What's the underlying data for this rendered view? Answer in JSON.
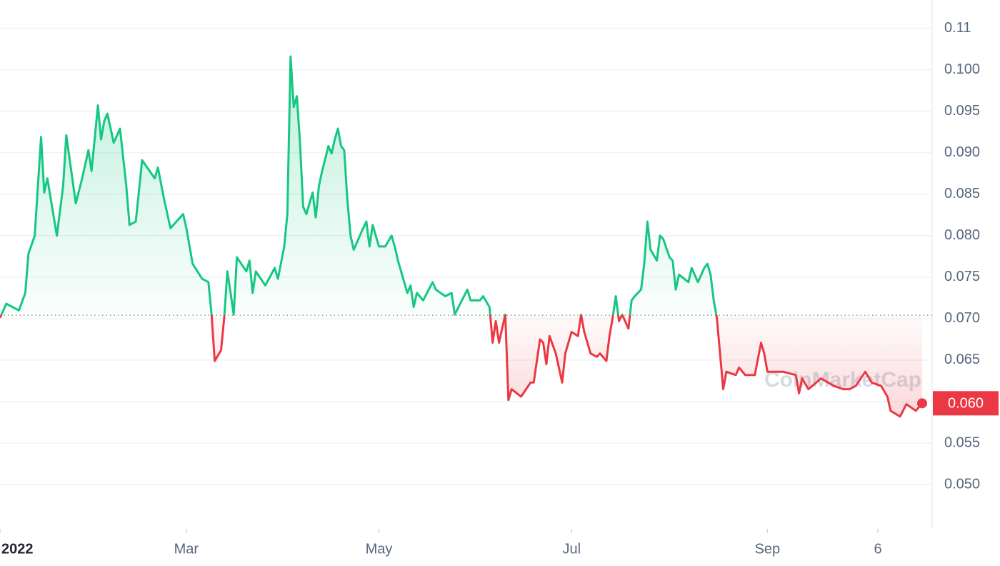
{
  "chart_data": {
    "type": "line",
    "watermark": "CoinMarketCap",
    "x": [
      0,
      2,
      6,
      8,
      9,
      11,
      13,
      14,
      15,
      18,
      20,
      21,
      24,
      26,
      28,
      29,
      31,
      32,
      33,
      34,
      36,
      38,
      40,
      41,
      43,
      45,
      49,
      50,
      52,
      54,
      58,
      59,
      61,
      64,
      66,
      67,
      68,
      70,
      71,
      72,
      73,
      74,
      75,
      78,
      79,
      80,
      81,
      84,
      87,
      88,
      90,
      91,
      92,
      93,
      94,
      95,
      96,
      97,
      99,
      100,
      101,
      102,
      104,
      105,
      106,
      107,
      108,
      109,
      110,
      111,
      112,
      115,
      116,
      117,
      118,
      120,
      122,
      124,
      125,
      126,
      127,
      129,
      130,
      131,
      132,
      134,
      137,
      138,
      141,
      143,
      144,
      148,
      149,
      152,
      153,
      155,
      156,
      157,
      158,
      160,
      161,
      162,
      165,
      168,
      169,
      171,
      172,
      173,
      174,
      176,
      178,
      179,
      181,
      183,
      184,
      185,
      187,
      189,
      190,
      192,
      193,
      194,
      195,
      196,
      197,
      199,
      200,
      201,
      203,
      204,
      205,
      206,
      208,
      209,
      210,
      212,
      213,
      214,
      215,
      218,
      219,
      221,
      223,
      224,
      225,
      226,
      227,
      229,
      230,
      233,
      234,
      236,
      239,
      241,
      242,
      243,
      248,
      252,
      253,
      254,
      256,
      260,
      264,
      267,
      269,
      271,
      274,
      276,
      279,
      281,
      282,
      285,
      287,
      290,
      292
    ],
    "values": [
      0.0701,
      0.0718,
      0.071,
      0.0731,
      0.0778,
      0.08,
      0.0919,
      0.0852,
      0.0869,
      0.08,
      0.086,
      0.0921,
      0.0839,
      0.0869,
      0.0903,
      0.0878,
      0.0957,
      0.0916,
      0.0938,
      0.0947,
      0.0912,
      0.0929,
      0.086,
      0.0813,
      0.0817,
      0.0891,
      0.0869,
      0.0882,
      0.0843,
      0.0809,
      0.0826,
      0.0809,
      0.0766,
      0.0748,
      0.0744,
      0.0705,
      0.0649,
      0.0662,
      0.0701,
      0.0757,
      0.0731,
      0.0705,
      0.0774,
      0.0757,
      0.077,
      0.0731,
      0.0757,
      0.074,
      0.0761,
      0.0748,
      0.0787,
      0.0826,
      0.1016,
      0.0955,
      0.0968,
      0.0912,
      0.0835,
      0.0826,
      0.0852,
      0.0822,
      0.086,
      0.0878,
      0.0908,
      0.0899,
      0.0916,
      0.0929,
      0.0908,
      0.0903,
      0.0843,
      0.08,
      0.0783,
      0.0809,
      0.0817,
      0.0787,
      0.0813,
      0.0787,
      0.0787,
      0.08,
      0.0787,
      0.077,
      0.0757,
      0.0731,
      0.074,
      0.0714,
      0.0731,
      0.0722,
      0.0744,
      0.0735,
      0.0727,
      0.0731,
      0.0705,
      0.0735,
      0.0722,
      0.0722,
      0.0727,
      0.0714,
      0.0671,
      0.0697,
      0.0671,
      0.0705,
      0.0602,
      0.0615,
      0.0606,
      0.0623,
      0.0623,
      0.0675,
      0.0671,
      0.0645,
      0.0679,
      0.0658,
      0.0623,
      0.0658,
      0.0684,
      0.0679,
      0.0705,
      0.0684,
      0.0658,
      0.0654,
      0.0658,
      0.0649,
      0.0679,
      0.0701,
      0.0727,
      0.0697,
      0.0705,
      0.0688,
      0.0722,
      0.0727,
      0.0735,
      0.0766,
      0.0817,
      0.0783,
      0.077,
      0.08,
      0.0796,
      0.0774,
      0.077,
      0.0735,
      0.0753,
      0.0744,
      0.0761,
      0.0744,
      0.0761,
      0.0766,
      0.0753,
      0.0722,
      0.0701,
      0.0615,
      0.0636,
      0.0632,
      0.0641,
      0.0632,
      0.0632,
      0.0671,
      0.0658,
      0.0636,
      0.0636,
      0.0632,
      0.061,
      0.0628,
      0.0615,
      0.0628,
      0.0619,
      0.0615,
      0.0615,
      0.0619,
      0.0636,
      0.0623,
      0.0619,
      0.0606,
      0.0589,
      0.0582,
      0.0597,
      0.0589,
      0.0598
    ],
    "baseline": 0.0704,
    "up_color": "#16c784",
    "down_color": "#ea3943",
    "last_price": {
      "value": 0.0598,
      "label": "0.060"
    },
    "xlim": [
      0,
      292
    ],
    "xticks": [
      {
        "value": 0,
        "label": "2022"
      },
      {
        "value": 59,
        "label": "Mar"
      },
      {
        "value": 120,
        "label": "May"
      },
      {
        "value": 181,
        "label": "Jul"
      },
      {
        "value": 243,
        "label": "Sep"
      },
      {
        "value": 278,
        "label": "6"
      }
    ],
    "ylim": [
      0.0451,
      0.1084
    ],
    "yticks": [
      {
        "value": 0.105,
        "label": "0.11"
      },
      {
        "value": 0.1,
        "label": "0.100"
      },
      0.095,
      {
        "value": 0.09,
        "label": "0.090"
      },
      0.085,
      {
        "value": 0.08,
        "label": "0.080"
      },
      0.075,
      {
        "value": 0.07,
        "label": "0.070"
      },
      0.065,
      {
        "value": 0.06,
        "label": "0.060"
      },
      0.055,
      {
        "value": 0.05,
        "label": "0.050"
      }
    ],
    "grid": true
  }
}
